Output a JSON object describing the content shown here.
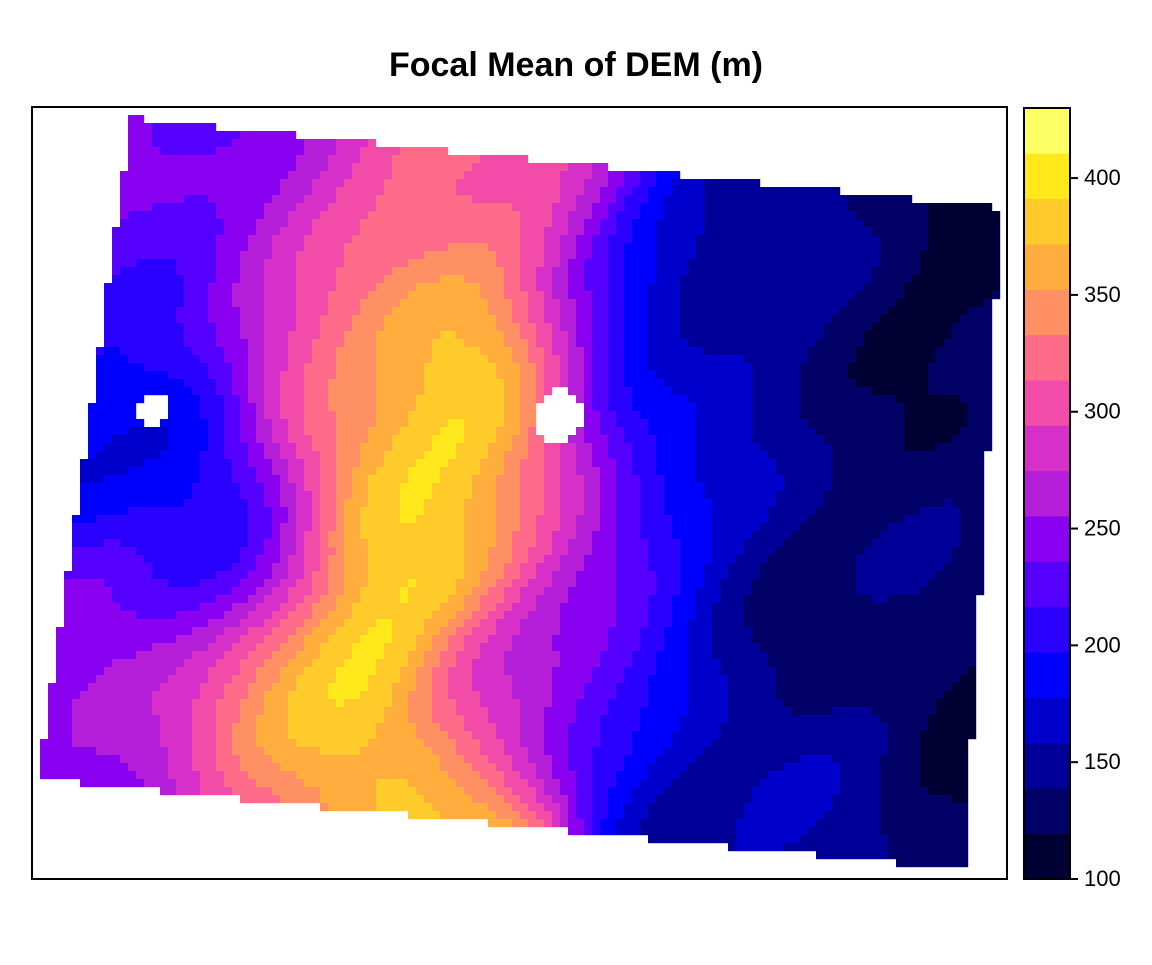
{
  "chart_data": {
    "type": "heatmap",
    "title": "Focal Mean of DEM (m)",
    "subtitle": "",
    "xlabel": "",
    "ylabel": "",
    "value_range": [
      100,
      430
    ],
    "colorbar": {
      "ticks": [
        100,
        150,
        200,
        250,
        300,
        350,
        400
      ],
      "breaks": [
        100,
        120,
        140,
        160,
        180,
        200,
        220,
        240,
        260,
        280,
        300,
        320,
        340,
        360,
        380,
        400,
        420,
        430
      ],
      "colors": [
        "#000033",
        "#000066",
        "#000099",
        "#0000CC",
        "#0000FF",
        "#2A00FF",
        "#5500FF",
        "#8A00F0",
        "#B51ED9",
        "#D630C8",
        "#F24CA8",
        "#FF6C8A",
        "#FF9064",
        "#FFAE3E",
        "#FFCB2A",
        "#FFE81C",
        "#FFFF66"
      ],
      "tick_labels": [
        "100",
        "150",
        "200",
        "250",
        "300",
        "350",
        "400"
      ]
    },
    "grid": false,
    "legend_position": "right",
    "landmarks": [
      {
        "u": 0.09,
        "v": 0.42,
        "value": 180,
        "r": 0.08
      },
      {
        "u": 0.12,
        "v": 0.25,
        "value": 235,
        "r": 0.09
      },
      {
        "u": 0.2,
        "v": 0.15,
        "value": 240,
        "r": 0.11
      },
      {
        "u": 0.18,
        "v": 0.55,
        "value": 200,
        "r": 0.08
      },
      {
        "u": 0.12,
        "v": 0.65,
        "value": 260,
        "r": 0.08
      },
      {
        "u": 0.06,
        "v": 0.75,
        "value": 230,
        "r": 0.08
      },
      {
        "u": 0.25,
        "v": 0.76,
        "value": 395,
        "r": 0.08
      },
      {
        "u": 0.3,
        "v": 0.83,
        "value": 375,
        "r": 0.09
      },
      {
        "u": 0.2,
        "v": 0.9,
        "value": 250,
        "r": 0.09
      },
      {
        "u": 0.35,
        "v": 0.3,
        "value": 345,
        "r": 0.09
      },
      {
        "u": 0.4,
        "v": 0.5,
        "value": 380,
        "r": 0.1
      },
      {
        "u": 0.44,
        "v": 0.35,
        "value": 360,
        "r": 0.08
      },
      {
        "u": 0.46,
        "v": 0.15,
        "value": 310,
        "r": 0.1
      },
      {
        "u": 0.52,
        "v": 0.55,
        "value": 320,
        "r": 0.08
      },
      {
        "u": 0.48,
        "v": 0.78,
        "value": 260,
        "r": 0.07
      },
      {
        "u": 0.42,
        "v": 0.92,
        "value": 365,
        "r": 0.07
      },
      {
        "u": 0.6,
        "v": 0.3,
        "value": 215,
        "r": 0.07
      },
      {
        "u": 0.58,
        "v": 0.68,
        "value": 230,
        "r": 0.07
      },
      {
        "u": 0.63,
        "v": 0.78,
        "value": 185,
        "r": 0.09
      },
      {
        "u": 0.7,
        "v": 0.2,
        "value": 165,
        "r": 0.1
      },
      {
        "u": 0.72,
        "v": 0.5,
        "value": 170,
        "r": 0.12
      },
      {
        "u": 0.8,
        "v": 0.35,
        "value": 150,
        "r": 0.12
      },
      {
        "u": 0.9,
        "v": 0.22,
        "value": 130,
        "r": 0.11
      },
      {
        "u": 0.92,
        "v": 0.6,
        "value": 140,
        "r": 0.12
      },
      {
        "u": 0.85,
        "v": 0.8,
        "value": 140,
        "r": 0.12
      },
      {
        "u": 0.74,
        "v": 0.88,
        "value": 170,
        "r": 0.1
      }
    ],
    "nodata_holes": [
      {
        "u": 0.07,
        "v": 0.43,
        "ru": 0.018,
        "rv": 0.025
      },
      {
        "u": 0.52,
        "v": 0.38,
        "ru": 0.028,
        "rv": 0.04
      }
    ]
  }
}
